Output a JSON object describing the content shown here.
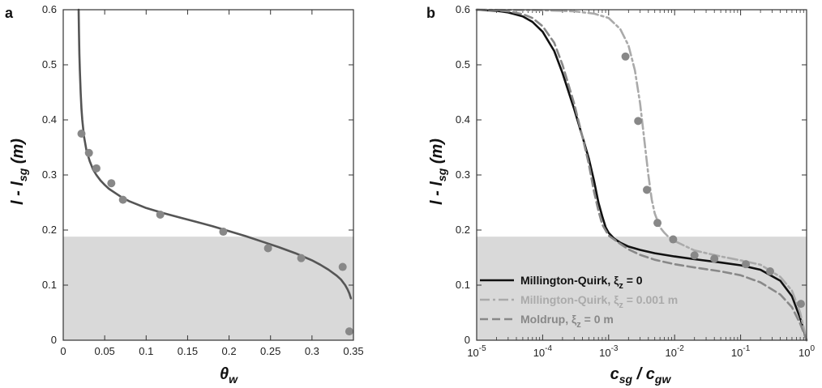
{
  "chart_data": [
    {
      "panel": "a",
      "type": "line",
      "xlabel": {
        "main": "θ",
        "sub": "w"
      },
      "ylabel": {
        "pre": "l - l",
        "sub": "sg",
        "post": " (m)"
      },
      "xlim": [
        0,
        0.35
      ],
      "ylim": [
        0,
        0.6
      ],
      "xticks": [
        "0",
        "0.05",
        "0.1",
        "0.15",
        "0.2",
        "0.25",
        "0.3",
        "0.35"
      ],
      "yticks": [
        "0",
        "0.1",
        "0.2",
        "0.3",
        "0.4",
        "0.5",
        "0.6"
      ],
      "xtick_values": [
        0,
        0.05,
        0.1,
        0.15,
        0.2,
        0.25,
        0.3,
        0.35
      ],
      "ytick_values": [
        0,
        0.1,
        0.2,
        0.3,
        0.4,
        0.5,
        0.6
      ],
      "shaded_region_y": [
        0,
        0.188
      ],
      "series": [
        {
          "kind": "line",
          "style": "solid",
          "color": "#555555",
          "x": [
            0.0186,
            0.019,
            0.0195,
            0.02,
            0.021,
            0.022,
            0.023,
            0.025,
            0.028,
            0.032,
            0.036,
            0.04,
            0.045,
            0.05,
            0.055,
            0.06,
            0.07,
            0.08,
            0.09,
            0.1,
            0.12,
            0.14,
            0.16,
            0.18,
            0.2,
            0.22,
            0.24,
            0.26,
            0.28,
            0.3,
            0.31,
            0.32,
            0.33,
            0.335,
            0.34,
            0.343,
            0.345,
            0.347
          ],
          "y": [
            0.6,
            0.56,
            0.52,
            0.49,
            0.45,
            0.42,
            0.4,
            0.37,
            0.345,
            0.325,
            0.31,
            0.3,
            0.29,
            0.282,
            0.275,
            0.27,
            0.26,
            0.252,
            0.246,
            0.24,
            0.231,
            0.223,
            0.215,
            0.207,
            0.198,
            0.189,
            0.179,
            0.169,
            0.158,
            0.145,
            0.137,
            0.128,
            0.117,
            0.11,
            0.1,
            0.092,
            0.085,
            0.076
          ]
        },
        {
          "kind": "points",
          "color": "#888888",
          "x": [
            0.022,
            0.031,
            0.04,
            0.058,
            0.072,
            0.117,
            0.193,
            0.247,
            0.287,
            0.337,
            0.345
          ],
          "y": [
            0.375,
            0.34,
            0.312,
            0.285,
            0.255,
            0.228,
            0.197,
            0.167,
            0.149,
            0.133,
            0.016
          ]
        }
      ]
    },
    {
      "panel": "b",
      "type": "line",
      "xscale": "log",
      "xlabel": {
        "pre": "c",
        "sub1": "sg",
        "mid": " / c",
        "sub2": "gw"
      },
      "ylabel": {
        "pre": "l - l",
        "sub": "sg",
        "post": " (m)"
      },
      "xlim": [
        1e-05,
        1
      ],
      "ylim": [
        0,
        0.6
      ],
      "xticks": [
        {
          "base": "10",
          "exp": "-5",
          "value": 1e-05
        },
        {
          "base": "10",
          "exp": "-4",
          "value": 0.0001
        },
        {
          "base": "10",
          "exp": "-3",
          "value": 0.001
        },
        {
          "base": "10",
          "exp": "-2",
          "value": 0.01
        },
        {
          "base": "10",
          "exp": "-1",
          "value": 0.1
        },
        {
          "base": "10",
          "exp": "0",
          "value": 1
        }
      ],
      "yticks": [
        "0",
        "0.1",
        "0.2",
        "0.3",
        "0.4",
        "0.5",
        "0.6"
      ],
      "ytick_values": [
        0,
        0.1,
        0.2,
        0.3,
        0.4,
        0.5,
        0.6
      ],
      "shaded_region_y": [
        0,
        0.188
      ],
      "legend": {
        "placement": "lower-left",
        "entries": [
          {
            "pre": "Millington-Quirk, ξ",
            "sub": "z",
            "post": " = 0",
            "color": "#111111",
            "style": "solid"
          },
          {
            "pre": "Millington-Quirk, ξ",
            "sub": "z",
            "post": " = 0.001 m",
            "color": "#aaaaaa",
            "style": "dashdot"
          },
          {
            "pre": "Moldrup, ξ",
            "sub": "z",
            "post": " = 0 m",
            "color": "#888888",
            "style": "dashed"
          }
        ]
      },
      "series": [
        {
          "legend_index": 0,
          "kind": "line",
          "style": "solid",
          "color": "#111111",
          "x": [
            1e-05,
            2e-05,
            3e-05,
            5e-05,
            7e-05,
            0.0001,
            0.00015,
            0.0002,
            0.0003,
            0.0004,
            0.0005,
            0.0006,
            0.0007,
            0.0008,
            0.0009,
            0.001,
            0.0012,
            0.0015,
            0.002,
            0.003,
            0.005,
            0.01,
            0.02,
            0.05,
            0.1,
            0.2,
            0.4,
            0.6,
            0.8,
            1.0
          ],
          "y": [
            0.6,
            0.598,
            0.595,
            0.588,
            0.578,
            0.56,
            0.525,
            0.485,
            0.42,
            0.37,
            0.33,
            0.29,
            0.25,
            0.225,
            0.205,
            0.195,
            0.185,
            0.177,
            0.17,
            0.164,
            0.158,
            0.152,
            0.147,
            0.141,
            0.136,
            0.128,
            0.108,
            0.08,
            0.04,
            0.0
          ]
        },
        {
          "legend_index": 1,
          "kind": "line",
          "style": "dashdot",
          "color": "#aaaaaa",
          "x": [
            1e-05,
            0.0001,
            0.0003,
            0.0006,
            0.001,
            0.0015,
            0.002,
            0.0025,
            0.003,
            0.0035,
            0.004,
            0.0045,
            0.005,
            0.006,
            0.007,
            0.008,
            0.01,
            0.015,
            0.02,
            0.05,
            0.1,
            0.2,
            0.4,
            0.6,
            0.8,
            1.0
          ],
          "y": [
            0.6,
            0.599,
            0.597,
            0.593,
            0.585,
            0.565,
            0.535,
            0.49,
            0.43,
            0.36,
            0.3,
            0.255,
            0.23,
            0.205,
            0.195,
            0.188,
            0.18,
            0.17,
            0.163,
            0.152,
            0.145,
            0.137,
            0.115,
            0.09,
            0.05,
            0.0
          ]
        },
        {
          "legend_index": 2,
          "kind": "line",
          "style": "dashed",
          "color": "#888888",
          "x": [
            1e-05,
            2e-05,
            3e-05,
            5e-05,
            7e-05,
            0.0001,
            0.00015,
            0.0002,
            0.0003,
            0.0004,
            0.0005,
            0.0006,
            0.0007,
            0.0008,
            0.001,
            0.0015,
            0.002,
            0.003,
            0.005,
            0.01,
            0.02,
            0.05,
            0.1,
            0.2,
            0.4,
            0.6,
            0.8,
            1.0
          ],
          "y": [
            0.6,
            0.599,
            0.597,
            0.592,
            0.585,
            0.57,
            0.54,
            0.5,
            0.43,
            0.37,
            0.32,
            0.27,
            0.235,
            0.21,
            0.19,
            0.175,
            0.165,
            0.155,
            0.146,
            0.138,
            0.132,
            0.125,
            0.118,
            0.105,
            0.083,
            0.06,
            0.03,
            0.0
          ]
        },
        {
          "kind": "points",
          "color": "#888888",
          "x": [
            0.0018,
            0.0028,
            0.0038,
            0.0055,
            0.0095,
            0.02,
            0.04,
            0.12,
            0.28,
            0.82
          ],
          "y": [
            0.515,
            0.398,
            0.273,
            0.213,
            0.183,
            0.154,
            0.148,
            0.138,
            0.125,
            0.066
          ]
        }
      ]
    }
  ]
}
